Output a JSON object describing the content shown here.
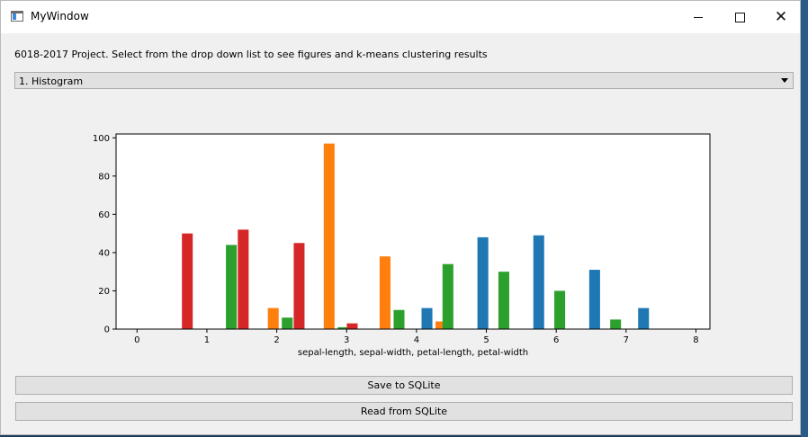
{
  "window": {
    "title": "MyWindow"
  },
  "description": "6018-2017 Project. Select from the drop down list to see figures and k-means clustering results",
  "dropdown": {
    "selected": "1. Histogram"
  },
  "buttons": {
    "save": "Save to SQLite",
    "read": "Read from SQLite"
  },
  "colors": {
    "series1": "#1f77b4",
    "series2": "#ff7f0e",
    "series3": "#2ca02c",
    "series4": "#d62728"
  },
  "chart_data": {
    "type": "bar",
    "xlabel": "sepal-length, sepal-width, petal-length, petal-width",
    "ylabel": "",
    "xlim": [
      -0.3,
      8.2
    ],
    "ylim": [
      0,
      102
    ],
    "xticks": [
      0,
      1,
      2,
      3,
      4,
      5,
      6,
      7,
      8
    ],
    "yticks": [
      0,
      20,
      40,
      60,
      80,
      100
    ],
    "bar_width": 0.155,
    "series": [
      {
        "color": "#1f77b4",
        "x": [
          4.15,
          4.95,
          5.75,
          6.55,
          7.25
        ],
        "values": [
          11,
          48,
          49,
          31,
          11
        ]
      },
      {
        "color": "#ff7f0e",
        "x": [
          1.95,
          2.75,
          3.55,
          4.35
        ],
        "values": [
          11,
          97,
          38,
          4
        ]
      },
      {
        "color": "#2ca02c",
        "x": [
          1.35,
          2.15,
          2.95,
          3.75,
          4.45,
          5.25,
          6.05,
          6.85
        ],
        "values": [
          44,
          6,
          1,
          10,
          34,
          30,
          20,
          5
        ]
      },
      {
        "color": "#d62728",
        "x": [
          0.72,
          1.52,
          2.32,
          3.08
        ],
        "values": [
          50,
          52,
          45,
          3
        ]
      }
    ]
  }
}
